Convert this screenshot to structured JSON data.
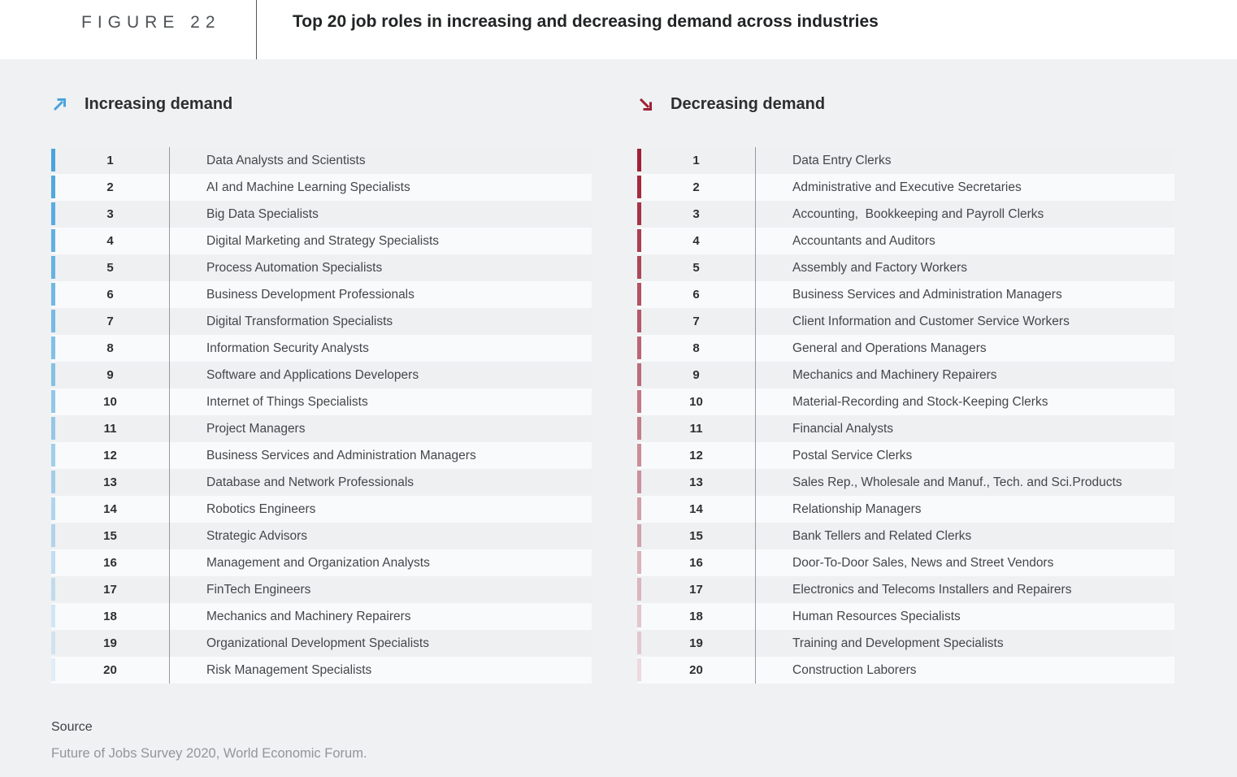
{
  "figure": {
    "label": "FIGURE 22",
    "title": "Top 20 job roles in increasing and decreasing demand across industries"
  },
  "chart_data": {
    "type": "table",
    "title": "Top 20 job roles in increasing and decreasing demand across industries",
    "legend_position": "top",
    "series": [
      {
        "name": "Increasing demand",
        "accent_color": "#4aa4de",
        "ranks": [
          1,
          2,
          3,
          4,
          5,
          6,
          7,
          8,
          9,
          10,
          11,
          12,
          13,
          14,
          15,
          16,
          17,
          18,
          19,
          20
        ],
        "roles": [
          "Data Analysts and Scientists",
          "AI and Machine Learning Specialists",
          "Big Data Specialists",
          "Digital Marketing and Strategy Specialists",
          "Process Automation Specialists",
          "Business Development Professionals",
          "Digital Transformation Specialists",
          "Information Security Analysts",
          "Software and Applications Developers",
          "Internet of Things Specialists",
          "Project Managers",
          "Business Services and Administration Managers",
          "Database and Network Professionals",
          "Robotics Engineers",
          "Strategic Advisors",
          "Management and Organization Analysts",
          "FinTech Engineers",
          "Mechanics and Machinery Repairers",
          "Organizational Development Specialists",
          "Risk Management Specialists"
        ]
      },
      {
        "name": "Decreasing demand",
        "accent_color": "#9e2136",
        "ranks": [
          1,
          2,
          3,
          4,
          5,
          6,
          7,
          8,
          9,
          10,
          11,
          12,
          13,
          14,
          15,
          16,
          17,
          18,
          19,
          20
        ],
        "roles": [
          "Data Entry Clerks",
          "Administrative and Executive Secretaries",
          "Accounting,  Bookkeeping and Payroll Clerks",
          "Accountants and Auditors",
          "Assembly and Factory Workers",
          "Business Services and Administration Managers",
          "Client Information and Customer Service Workers",
          "General and Operations Managers",
          "Mechanics and Machinery Repairers",
          "Material-Recording and Stock-Keeping Clerks",
          "Financial Analysts",
          "Postal Service Clerks",
          "Sales Rep., Wholesale and Manuf., Tech. and Sci.Products",
          "Relationship Managers",
          "Bank Tellers and Related Clerks",
          "Door-To-Door Sales, News and Street Vendors",
          "Electronics and Telecoms Installers and Repairers",
          "Human Resources Specialists",
          "Training and Development Specialists",
          "Construction Laborers"
        ]
      }
    ]
  },
  "panels": [
    {
      "heading": "Increasing demand",
      "arrow_icon": "arrow-up-right",
      "accent": "#4aa4de"
    },
    {
      "heading": "Decreasing demand",
      "arrow_icon": "arrow-down-right",
      "accent": "#9e2136"
    }
  ],
  "source": {
    "label": "Source",
    "text": "Future of Jobs Survey 2020, World Economic Forum."
  }
}
